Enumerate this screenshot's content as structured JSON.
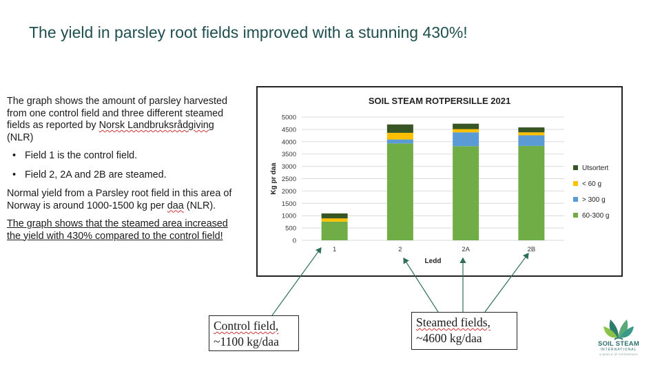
{
  "slide": {
    "title": "The yield in parsley root fields improved with a stunning 430%!"
  },
  "left_text": {
    "intro_1": "The graph shows the amount of parsley harvested from one control field and three different steamed fields as reported by ",
    "intro_source": "Norsk Landbruksrådgiving",
    "intro_2": " (NLR)",
    "bullet_1": "Field 1 is the control field.",
    "bullet_2": "Field 2, 2A and 2B are steamed.",
    "normal_yield_1": "Normal yield from a Parsley root field in this area of Norway is around 1000-1500 kg per ",
    "normal_yield_unit": "daa",
    "normal_yield_2": " (NLR).",
    "conclusion": "The graph shows that the steamed area increased the yield with 430% compared to the control field!"
  },
  "callouts": {
    "control_line1": "Control field,",
    "control_line2": "~1100 kg/daa",
    "steamed_line1": "Steamed  fields,",
    "steamed_line2": "~4600 kg/daa"
  },
  "logo": {
    "name": "SOIL STEAM",
    "sub": "INTERNATIONAL",
    "tagline": "A WORLD OF DIFFERENCE"
  },
  "chart_data": {
    "type": "bar",
    "stacked": true,
    "title": "SOIL STEAM ROTPERSILLE 2021",
    "xlabel": "Ledd",
    "ylabel": "Kg pr daa",
    "ylim": [
      0,
      5000
    ],
    "yticks": [
      0,
      500,
      1000,
      1500,
      2000,
      2500,
      3000,
      3500,
      4000,
      4500,
      5000
    ],
    "grid": true,
    "legend_position": "right",
    "categories": [
      "1",
      "2",
      "2A",
      "2B"
    ],
    "series": [
      {
        "name": "60-300 g",
        "color": "#70ad47",
        "values": [
          760,
          3930,
          3820,
          3830
        ]
      },
      {
        "name": "> 300 g",
        "color": "#5b9bd5",
        "values": [
          0,
          160,
          560,
          430
        ]
      },
      {
        "name": "< 60 g",
        "color": "#ffc000",
        "values": [
          130,
          270,
          130,
          120
        ]
      },
      {
        "name": "Utsortert",
        "color": "#375623",
        "values": [
          200,
          340,
          220,
          200
        ]
      }
    ]
  }
}
